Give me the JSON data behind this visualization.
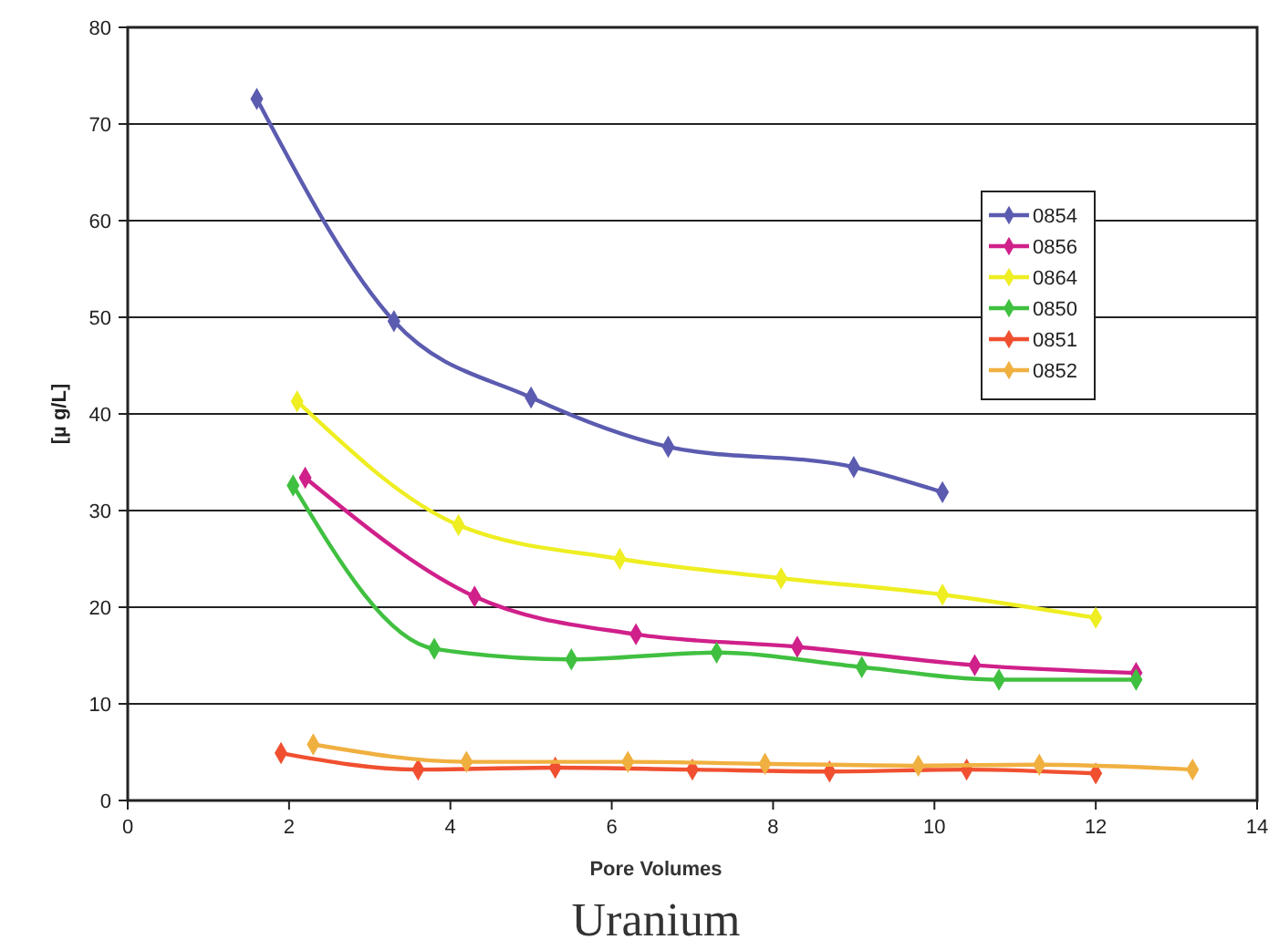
{
  "chart_data": {
    "type": "line",
    "title": "Uranium",
    "xlabel": "Pore Volumes",
    "ylabel": "[µ g/L]",
    "xlim": [
      0,
      14
    ],
    "xticks": [
      0,
      2,
      4,
      6,
      8,
      10,
      12,
      14
    ],
    "ylim": [
      0,
      80
    ],
    "yticks": [
      0,
      10,
      20,
      30,
      40,
      50,
      60,
      70,
      80
    ],
    "grid": "y",
    "legend": "right",
    "marker": "diamond",
    "line_style": "solid",
    "series": [
      {
        "name": "0854",
        "color": "#5b5bb0",
        "x": [
          1.6,
          3.3,
          5.0,
          6.7,
          9.0,
          10.1
        ],
        "values": [
          72.6,
          49.6,
          41.7,
          36.6,
          34.5,
          31.9
        ]
      },
      {
        "name": "0856",
        "color": "#d0208a",
        "x": [
          2.2,
          4.3,
          6.3,
          8.3,
          10.5,
          12.5
        ],
        "values": [
          33.4,
          21.1,
          17.2,
          15.9,
          14.0,
          13.2
        ]
      },
      {
        "name": "0864",
        "color": "#eeee22",
        "x": [
          2.1,
          4.1,
          6.1,
          8.1,
          10.1,
          12.0
        ],
        "values": [
          41.3,
          28.5,
          25.0,
          23.0,
          21.3,
          18.9
        ]
      },
      {
        "name": "0850",
        "color": "#40c040",
        "x": [
          2.05,
          3.8,
          5.5,
          7.3,
          9.1,
          10.8,
          12.5
        ],
        "values": [
          32.6,
          15.7,
          14.6,
          15.3,
          13.8,
          12.5,
          12.5
        ]
      },
      {
        "name": "0851",
        "color": "#f05030",
        "x": [
          1.9,
          3.6,
          5.3,
          7.0,
          8.7,
          10.4,
          12.0
        ],
        "values": [
          4.9,
          3.2,
          3.4,
          3.2,
          3.0,
          3.2,
          2.8
        ]
      },
      {
        "name": "0852",
        "color": "#f0b040",
        "x": [
          2.3,
          4.2,
          6.2,
          7.9,
          9.8,
          11.3,
          13.2
        ],
        "values": [
          5.8,
          4.0,
          4.0,
          3.8,
          3.6,
          3.7,
          3.2
        ]
      }
    ]
  }
}
